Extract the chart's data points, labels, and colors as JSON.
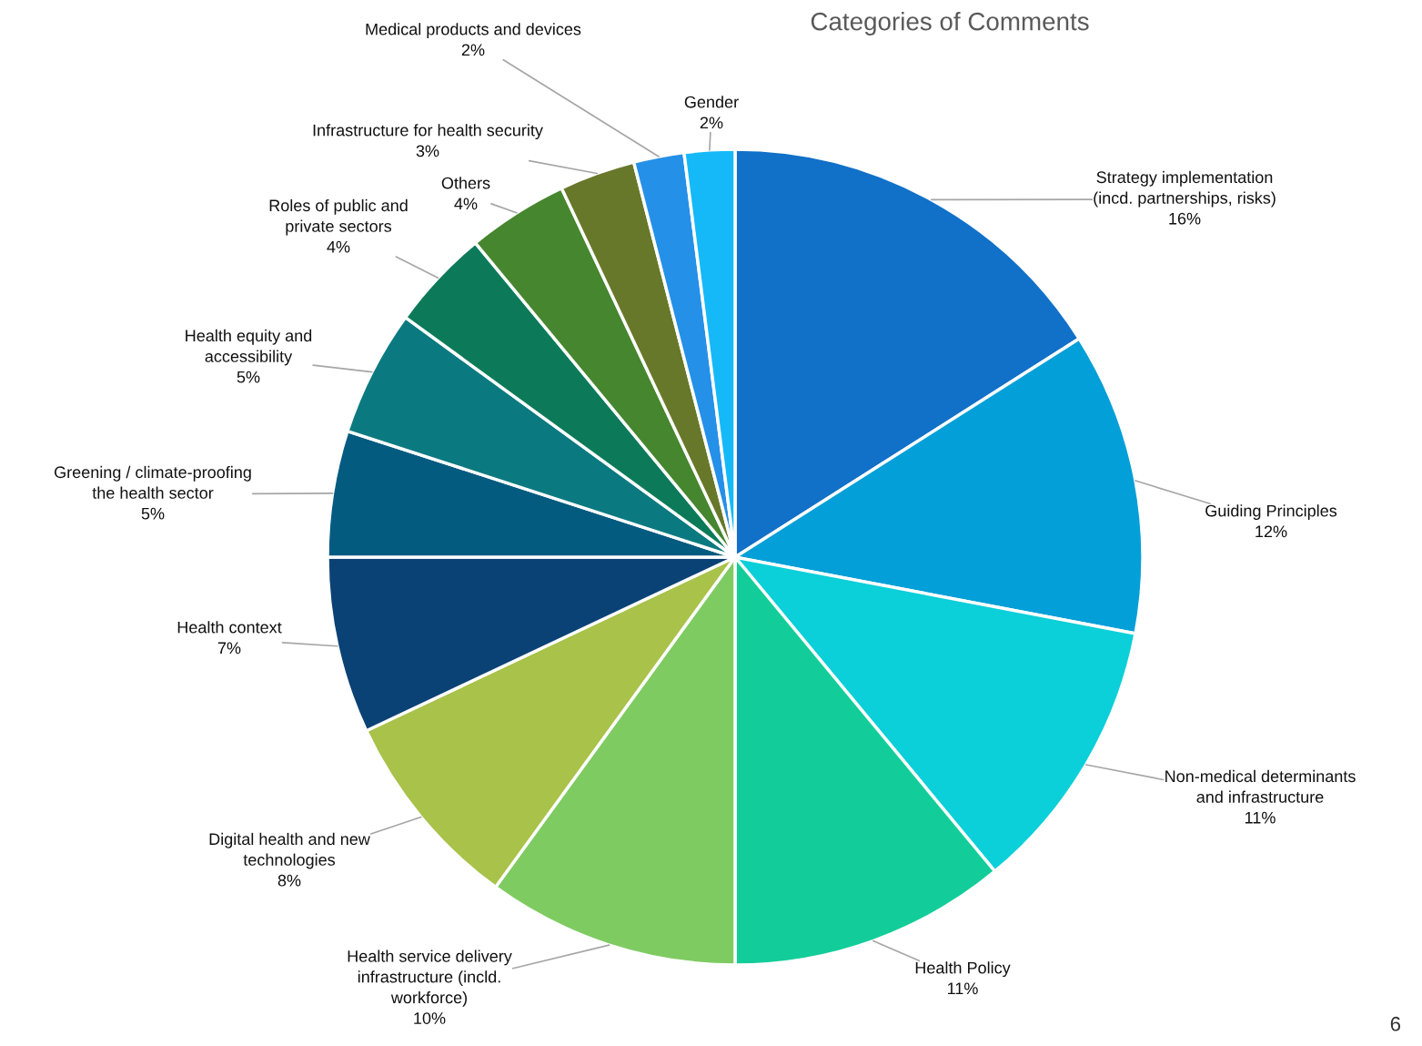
{
  "chart_data": {
    "type": "pie",
    "title": "Categories of Comments",
    "categories": [
      "Strategy implementation\n(incd. partnerships, risks)",
      "Guiding Principles",
      "Non-medical determinants\nand infrastructure",
      "Health Policy",
      "Health service delivery\ninfrastructure (incld.\nworkforce)",
      "Digital health and new\ntechnologies",
      "Health context",
      "Greening / climate-proofing\nthe health sector",
      "Health equity and\naccessibility",
      "Roles of public and\nprivate sectors",
      "Others",
      "Infrastructure for health security",
      "Medical products and devices",
      "Gender"
    ],
    "values": [
      16,
      12,
      11,
      11,
      10,
      8,
      7,
      5,
      5,
      4,
      4,
      3,
      2,
      2
    ],
    "value_labels": [
      "16%",
      "12%",
      "11%",
      "11%",
      "10%",
      "8%",
      "7%",
      "5%",
      "5%",
      "4%",
      "4%",
      "3%",
      "2%",
      "2%"
    ],
    "colors": [
      "#1170c8",
      "#039fd8",
      "#0bcfd9",
      "#12cd99",
      "#7ecb62",
      "#a8c24a",
      "#0b4275",
      "#045b80",
      "#0b7a80",
      "#0c7a58",
      "#46862e",
      "#68782a",
      "#2590e8",
      "#15b9f8"
    ],
    "annotations": [
      "6"
    ]
  }
}
